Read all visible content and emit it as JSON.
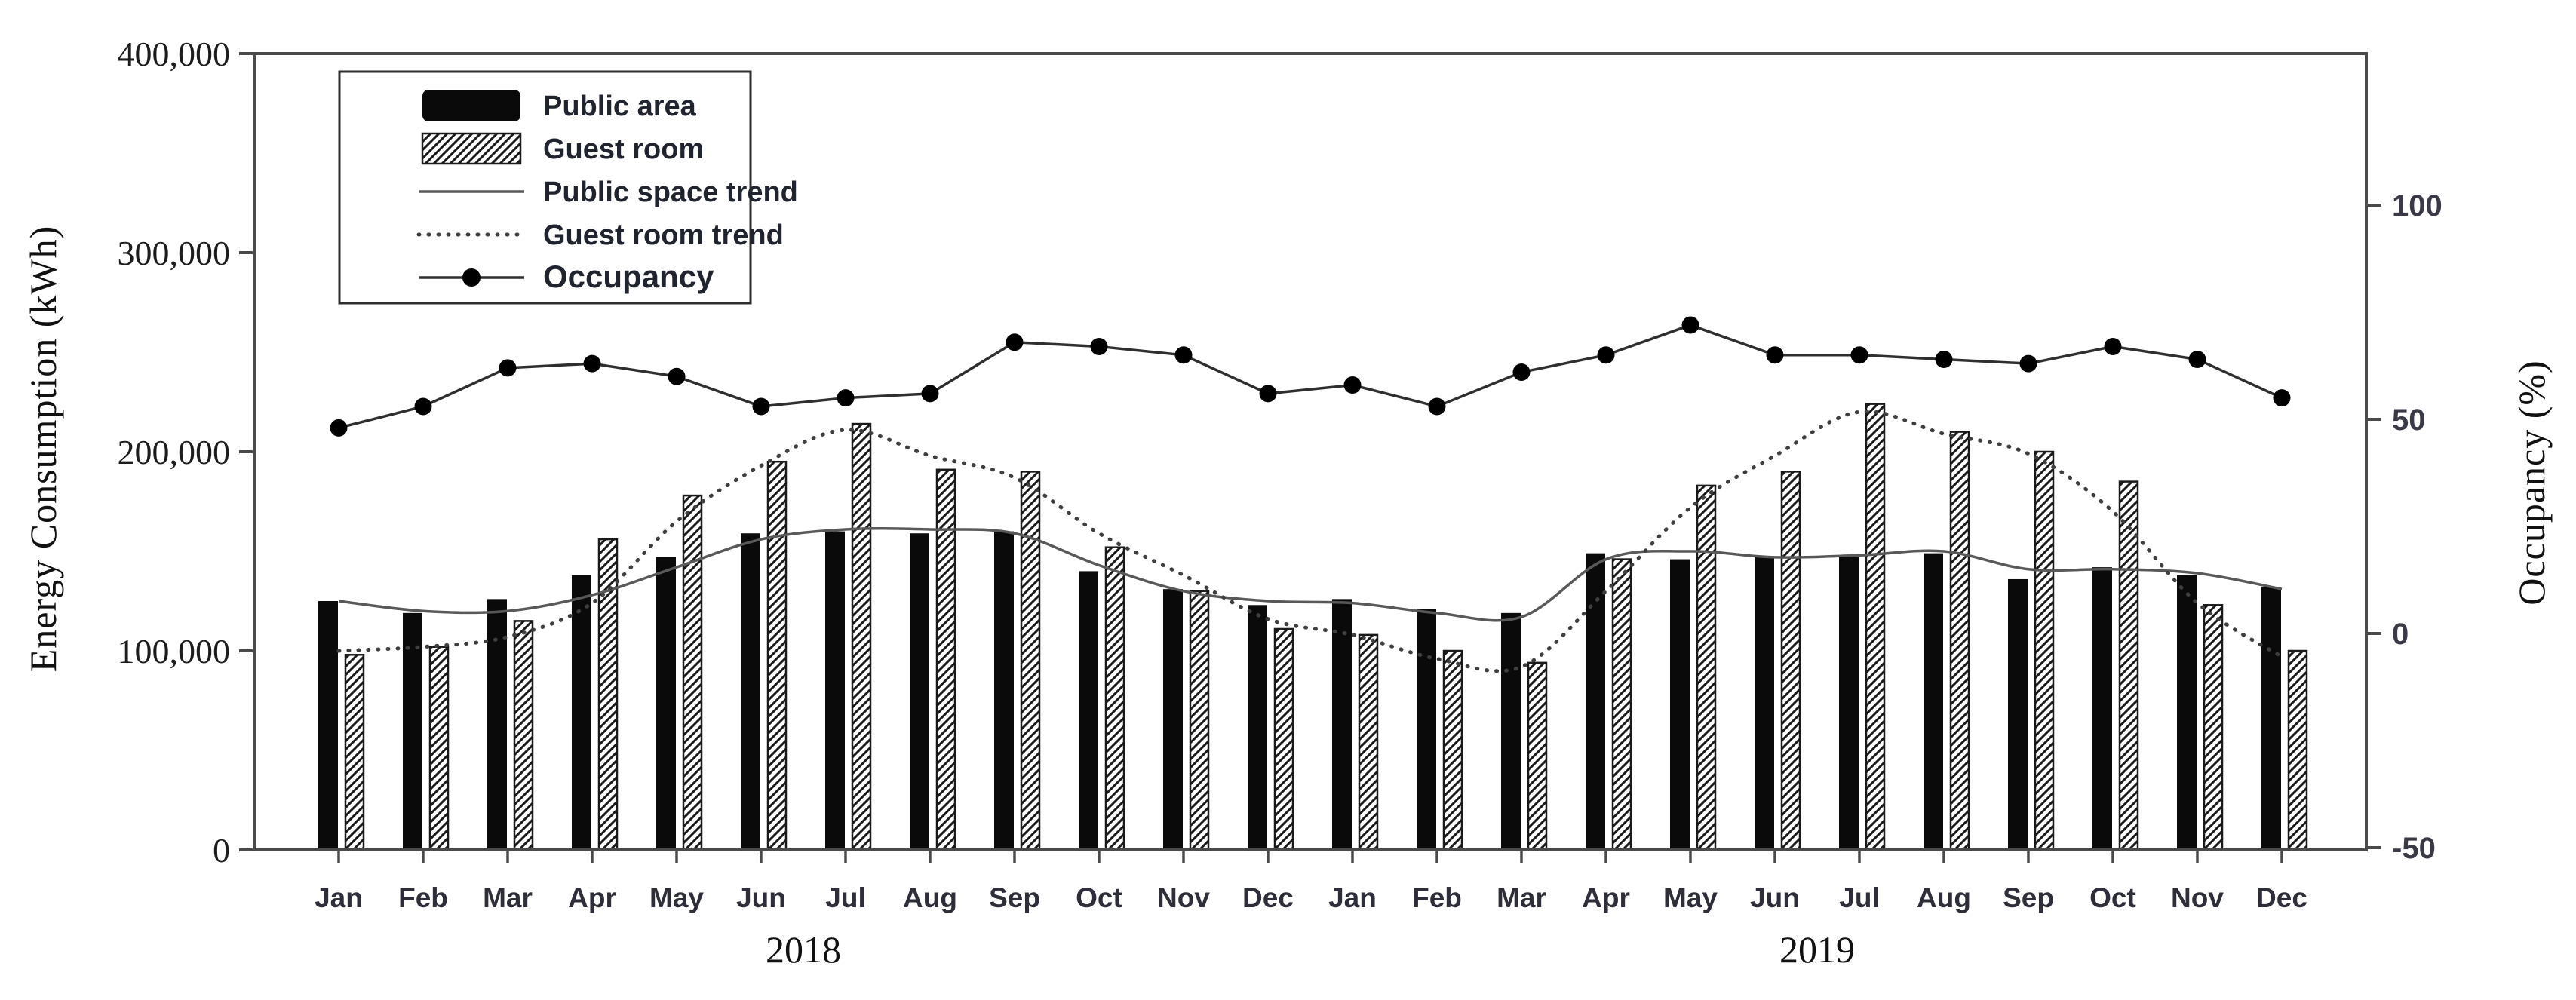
{
  "page": {
    "background": "#ffffff"
  },
  "chart_data": {
    "type": "bar",
    "title": "",
    "subtitle": "",
    "categories": [
      "Jan",
      "Feb",
      "Mar",
      "Apr",
      "May",
      "Jun",
      "Jul",
      "Aug",
      "Sep",
      "Oct",
      "Nov",
      "Dec",
      "Jan",
      "Feb",
      "Mar",
      "Apr",
      "May",
      "Jun",
      "Jul",
      "Aug",
      "Sep",
      "Oct",
      "Nov",
      "Dec"
    ],
    "year_labels": [
      "2018",
      "2019"
    ],
    "grid": "off",
    "legend_position": "top-left",
    "left_axis": {
      "label": "Energy Consumption (kWh)",
      "min": 0,
      "max": 400000,
      "ticks": [
        {
          "label": "0",
          "value": 0
        },
        {
          "label": "100,000",
          "value": 100000
        },
        {
          "label": "200,000",
          "value": 200000
        },
        {
          "label": "300,000",
          "value": 300000
        },
        {
          "label": "400,000",
          "value": 400000
        }
      ]
    },
    "right_axis": {
      "label": "Occupancy (%)",
      "ticks": [
        {
          "label": "-50",
          "value": -50
        },
        {
          "label": "0",
          "value": 0
        },
        {
          "label": "50",
          "value": 50
        },
        {
          "label": "100",
          "value": 100
        }
      ]
    },
    "series": [
      {
        "name": "Public area",
        "type": "bar",
        "pattern": "solid-black",
        "axis": "left",
        "values": [
          125000,
          119000,
          126000,
          138000,
          147000,
          159000,
          160000,
          159000,
          160000,
          140000,
          131000,
          123000,
          126000,
          121000,
          119000,
          149000,
          146000,
          147000,
          147000,
          149000,
          136000,
          142000,
          138000,
          132000
        ]
      },
      {
        "name": "Guest room",
        "type": "bar",
        "pattern": "diagonal-hatch",
        "axis": "left",
        "values": [
          98000,
          102000,
          115000,
          156000,
          178000,
          195000,
          214000,
          191000,
          190000,
          152000,
          130000,
          111000,
          108000,
          100000,
          94000,
          146000,
          183000,
          190000,
          224000,
          210000,
          200000,
          185000,
          123000,
          100000
        ]
      },
      {
        "name": "Public space trend",
        "type": "line",
        "pattern": "solid",
        "axis": "left",
        "values": [
          125000,
          120000,
          120000,
          128000,
          142000,
          156000,
          161000,
          161000,
          159000,
          143000,
          130000,
          125000,
          124000,
          119000,
          117000,
          146000,
          150000,
          147000,
          148000,
          150000,
          141000,
          141000,
          139000,
          131000
        ]
      },
      {
        "name": "Guest room trend",
        "type": "line",
        "pattern": "dotted",
        "axis": "left",
        "values": [
          100000,
          102000,
          107000,
          124000,
          165000,
          193000,
          211000,
          198000,
          187000,
          159000,
          138000,
          116000,
          108000,
          96000,
          92000,
          130000,
          172000,
          198000,
          220000,
          209000,
          199000,
          170000,
          124000,
          97000
        ]
      },
      {
        "name": "Occupancy",
        "type": "line-marker",
        "pattern": "solid-circle-markers",
        "axis": "right",
        "values": [
          48,
          53,
          62,
          63,
          60,
          53,
          55,
          56,
          68,
          67,
          65,
          56,
          58,
          53,
          61,
          65,
          72,
          65,
          65,
          64,
          63,
          67,
          64,
          55
        ]
      }
    ],
    "colors": {
      "bar_fill": "#0a0a0a",
      "hatch_stroke": "#1a1a1a",
      "trend_solid": "#595959",
      "trend_dotted": "#3f3f3f",
      "occupancy_line": "#2f2f2f",
      "marker_fill": "#000000",
      "axis": "#4a4a4a",
      "tick_text": "#1c1c1c",
      "right_tick_text": "#3a3a46",
      "month_text": "#2e2e3a",
      "legend_text": "#20242e"
    }
  }
}
